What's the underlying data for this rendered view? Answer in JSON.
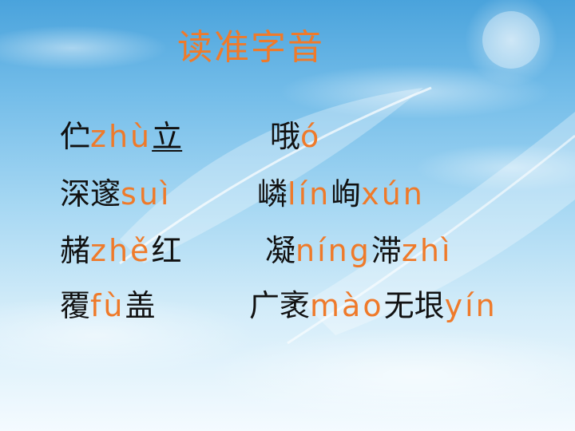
{
  "slide": {
    "title": "读准字音",
    "words": [
      {
        "id": "w1",
        "parts": [
          {
            "t": "伫",
            "k": "hz"
          },
          {
            "t": "zhù",
            "k": "py"
          },
          {
            "t": "立",
            "k": "hz-u"
          }
        ]
      },
      {
        "id": "w2",
        "parts": [
          {
            "t": "哦",
            "k": "hz"
          },
          {
            "t": "ó",
            "k": "py"
          }
        ]
      },
      {
        "id": "w3",
        "parts": [
          {
            "t": "深邃",
            "k": "hz"
          },
          {
            "t": "suì",
            "k": "py"
          }
        ]
      },
      {
        "id": "w4",
        "parts": [
          {
            "t": "嶙",
            "k": "hz"
          },
          {
            "t": "lín",
            "k": "py"
          },
          {
            "t": "峋",
            "k": "hz"
          },
          {
            "t": "xún",
            "k": "py"
          }
        ]
      },
      {
        "id": "w5",
        "parts": [
          {
            "t": "赭",
            "k": "hz"
          },
          {
            "t": "zhě",
            "k": "py"
          },
          {
            "t": "红",
            "k": "hz"
          }
        ]
      },
      {
        "id": "w6",
        "parts": [
          {
            "t": "凝",
            "k": "hz"
          },
          {
            "t": "níng",
            "k": "py"
          },
          {
            "t": "滞",
            "k": "hz"
          },
          {
            "t": "zhì",
            "k": "py"
          }
        ]
      },
      {
        "id": "w7",
        "parts": [
          {
            "t": "覆",
            "k": "hz"
          },
          {
            "t": "fù",
            "k": "py"
          },
          {
            "t": "盖",
            "k": "hz"
          }
        ]
      },
      {
        "id": "w8",
        "parts": [
          {
            "t": "广袤",
            "k": "hz"
          },
          {
            "t": "mào",
            "k": "py"
          },
          {
            "t": "无垠",
            "k": "hz"
          },
          {
            "t": "yín",
            "k": "py"
          }
        ]
      }
    ]
  },
  "colors": {
    "pinyin": "#ef7a2a",
    "hanzi": "#111111",
    "title": "#ef7a2a",
    "sky_top": "#4aa3dc",
    "sky_bottom": "#f4fbff"
  }
}
